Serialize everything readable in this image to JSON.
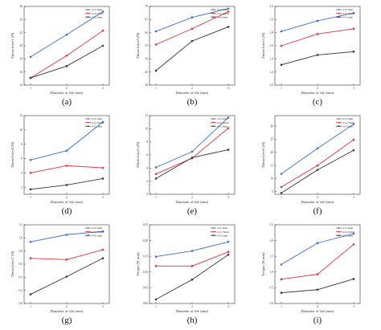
{
  "series_colors": [
    "#3a6fd0",
    "#e0323a",
    "#333333"
  ],
  "chart_data": [
    {
      "type": "line",
      "panel_label": "(a)",
      "xlabel": "Diameter of file (mm)",
      "ylabel": "Thrust force1 (N)",
      "categories": [
        "1",
        "2",
        "3"
      ],
      "yticks": [
        "14",
        "16",
        "18",
        "20",
        "22",
        "24",
        "26"
      ],
      "ylim": [
        14,
        26
      ],
      "series": [
        {
          "name": "d=0.3mm",
          "values": [
            18.3,
            21.7,
            25.2
          ]
        },
        {
          "name": "d=0.25mm",
          "values": [
            15.1,
            18.5,
            22.3
          ]
        },
        {
          "name": "d=0.2mm",
          "values": [
            15.1,
            16.9,
            20.0
          ]
        }
      ],
      "legend_position": "top-right"
    },
    {
      "type": "line",
      "panel_label": "(b)",
      "xlabel": "Diameter of file (mm)",
      "ylabel": "Thrust force2 (N)",
      "categories": [
        "1",
        "2",
        "3"
      ],
      "yticks": [
        "40",
        "45",
        "50",
        "55",
        "60",
        "65",
        "70"
      ],
      "ylim": [
        40,
        70
      ],
      "series": [
        {
          "name": "d=0.3mm",
          "values": [
            60.5,
            65.8,
            69.2
          ]
        },
        {
          "name": "d=0.25mm",
          "values": [
            55.5,
            61.5,
            68.0
          ]
        },
        {
          "name": "d=0.2mm",
          "values": [
            45.5,
            56.8,
            62.2
          ]
        }
      ],
      "legend_position": "top-right"
    },
    {
      "type": "line",
      "panel_label": "(c)",
      "xlabel": "Diameter of file (mm)",
      "ylabel": "Thrust force3 (N)",
      "categories": [
        "1",
        "2",
        "3"
      ],
      "yticks": [
        "2.0",
        "2.2",
        "2.4",
        "2.6",
        "2.8",
        "3.0",
        "3.2"
      ],
      "ylim": [
        2.0,
        3.2
      ],
      "series": [
        {
          "name": "d=0.3mm",
          "values": [
            2.82,
            2.98,
            3.1
          ]
        },
        {
          "name": "d=0.25mm",
          "values": [
            2.6,
            2.78,
            2.86
          ]
        },
        {
          "name": "d=0.2mm",
          "values": [
            2.31,
            2.46,
            2.51
          ]
        }
      ],
      "legend_position": "top-right"
    },
    {
      "type": "line",
      "panel_label": "(d)",
      "xlabel": "Diameter of file (mm)",
      "ylabel": "Thrust force4 (N)",
      "categories": [
        "1",
        "2",
        "3"
      ],
      "yticks": [
        "2",
        "4",
        "6",
        "8",
        "10",
        "12"
      ],
      "ylim": [
        1,
        12
      ],
      "series": [
        {
          "name": "d=0.3mm",
          "values": [
            5.8,
            7.1,
            11.1
          ]
        },
        {
          "name": "d=0.25mm",
          "values": [
            4.0,
            5.0,
            4.7
          ]
        },
        {
          "name": "d=0.2mm",
          "values": [
            1.7,
            2.3,
            3.2
          ]
        }
      ],
      "legend_position": "top-right"
    },
    {
      "type": "line",
      "panel_label": "(e)",
      "xlabel": "Diameter of file (mm)",
      "ylabel": "Thrust force5 (N)",
      "categories": [
        "1",
        "2",
        "3"
      ],
      "yticks": [
        "0",
        "2",
        "4",
        "6",
        "8",
        "10",
        "12"
      ],
      "ylim": [
        0,
        12
      ],
      "series": [
        {
          "name": "d=0.3mm",
          "values": [
            4.1,
            6.5,
            11.7
          ]
        },
        {
          "name": "d=0.25mm",
          "values": [
            3.1,
            5.5,
            10.1
          ]
        },
        {
          "name": "d=0.2mm",
          "values": [
            2.4,
            5.6,
            6.8
          ]
        }
      ],
      "legend_position": "top-right"
    },
    {
      "type": "line",
      "panel_label": "(f)",
      "xlabel": "Diameter of file (mm)",
      "ylabel": "Thrust force6 (N)",
      "categories": [
        "1",
        "2",
        "3"
      ],
      "yticks": [
        "5",
        "10",
        "15",
        "20",
        "25",
        "30"
      ],
      "ylim": [
        4,
        34
      ],
      "series": [
        {
          "name": "d=0.3mm",
          "values": [
            11.8,
            21.5,
            30.8
          ]
        },
        {
          "name": "d=0.25mm",
          "values": [
            6.8,
            15.0,
            24.8
          ]
        },
        {
          "name": "d=0.2mm",
          "values": [
            4.5,
            13.3,
            20.8
          ]
        }
      ],
      "legend_position": "top-right"
    },
    {
      "type": "line",
      "panel_label": "(g)",
      "xlabel": "Diameter of file (mm)",
      "ylabel": "Thrust force7 (N)",
      "categories": [
        "1",
        "2",
        "3"
      ],
      "yticks": [
        "0.0",
        "0.2",
        "0.4",
        "0.6",
        "0.8",
        "1.0",
        "1.2"
      ],
      "ylim": [
        0,
        1.2
      ],
      "series": [
        {
          "name": "d=0.3mm",
          "values": [
            0.94,
            1.05,
            1.1
          ]
        },
        {
          "name": "d=0.25mm",
          "values": [
            0.69,
            0.67,
            0.82
          ]
        },
        {
          "name": "d=0.2mm",
          "values": [
            0.14,
            0.41,
            0.69
          ]
        }
      ],
      "legend_position": "top-right"
    },
    {
      "type": "line",
      "panel_label": "(h)",
      "xlabel": "Diameter of file (mm)",
      "ylabel": "Torque (N·mm)",
      "categories": [
        "1",
        "2",
        "3"
      ],
      "yticks": [
        "0.00",
        "0.05",
        "0.10",
        "0.15",
        "0.20",
        "0.25"
      ],
      "ylim": [
        0,
        0.25
      ],
      "series": [
        {
          "name": "d=0.3mm",
          "values": [
            0.149,
            0.167,
            0.196
          ]
        },
        {
          "name": "d=0.25mm",
          "values": [
            0.119,
            0.119,
            0.164
          ]
        },
        {
          "name": "d=0.2mm",
          "values": [
            0.013,
            0.076,
            0.155
          ]
        }
      ],
      "legend_position": "top-right"
    },
    {
      "type": "line",
      "panel_label": "(i)",
      "xlabel": "Diameter of file (mm)",
      "ylabel": "Torque (N·mm)",
      "categories": [
        "1",
        "2",
        "3"
      ],
      "yticks": [
        "0.0",
        "0.5",
        "1.0",
        "1.5",
        "2.0",
        "2.5"
      ],
      "ylim": [
        0,
        2.5
      ],
      "series": [
        {
          "name": "d=0.3mm",
          "values": [
            1.24,
            1.92,
            2.22
          ]
        },
        {
          "name": "d=0.25mm",
          "values": [
            0.77,
            0.93,
            1.88
          ]
        },
        {
          "name": "d=0.2mm",
          "values": [
            0.34,
            0.44,
            0.78
          ]
        }
      ],
      "legend_position": "top-right"
    }
  ]
}
